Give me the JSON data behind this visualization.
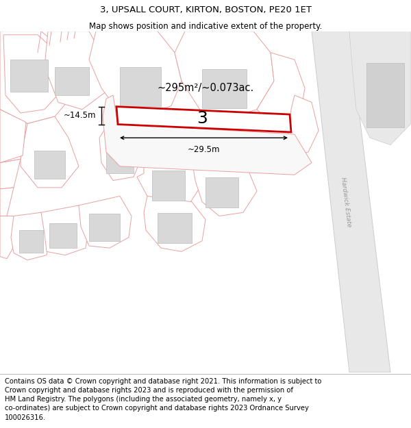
{
  "title": "3, UPSALL COURT, KIRTON, BOSTON, PE20 1ET",
  "subtitle": "Map shows position and indicative extent of the property.",
  "footer": "Contains OS data © Crown copyright and database right 2021. This information is subject to\nCrown copyright and database rights 2023 and is reproduced with the permission of\nHM Land Registry. The polygons (including the associated geometry, namely x, y\nco-ordinates) are subject to Crown copyright and database rights 2023 Ordnance Survey\n100026316.",
  "bg_color": "#ffffff",
  "map_bg": "#ffffff",
  "plot_line_color": "#e8a0a0",
  "highlight_color": "#cc0000",
  "area_text": "~295m²/~0.073ac.",
  "label_3": "3",
  "dim_width": "~29.5m",
  "dim_height": "~14.5m",
  "road_label": "Hardwick Estate",
  "title_fontsize": 9.5,
  "subtitle_fontsize": 8.5,
  "footer_fontsize": 7.2,
  "building_fill": "#d8d8d8",
  "road_fill": "#e8e8e8",
  "parcel_fill": "#f8f8f8"
}
